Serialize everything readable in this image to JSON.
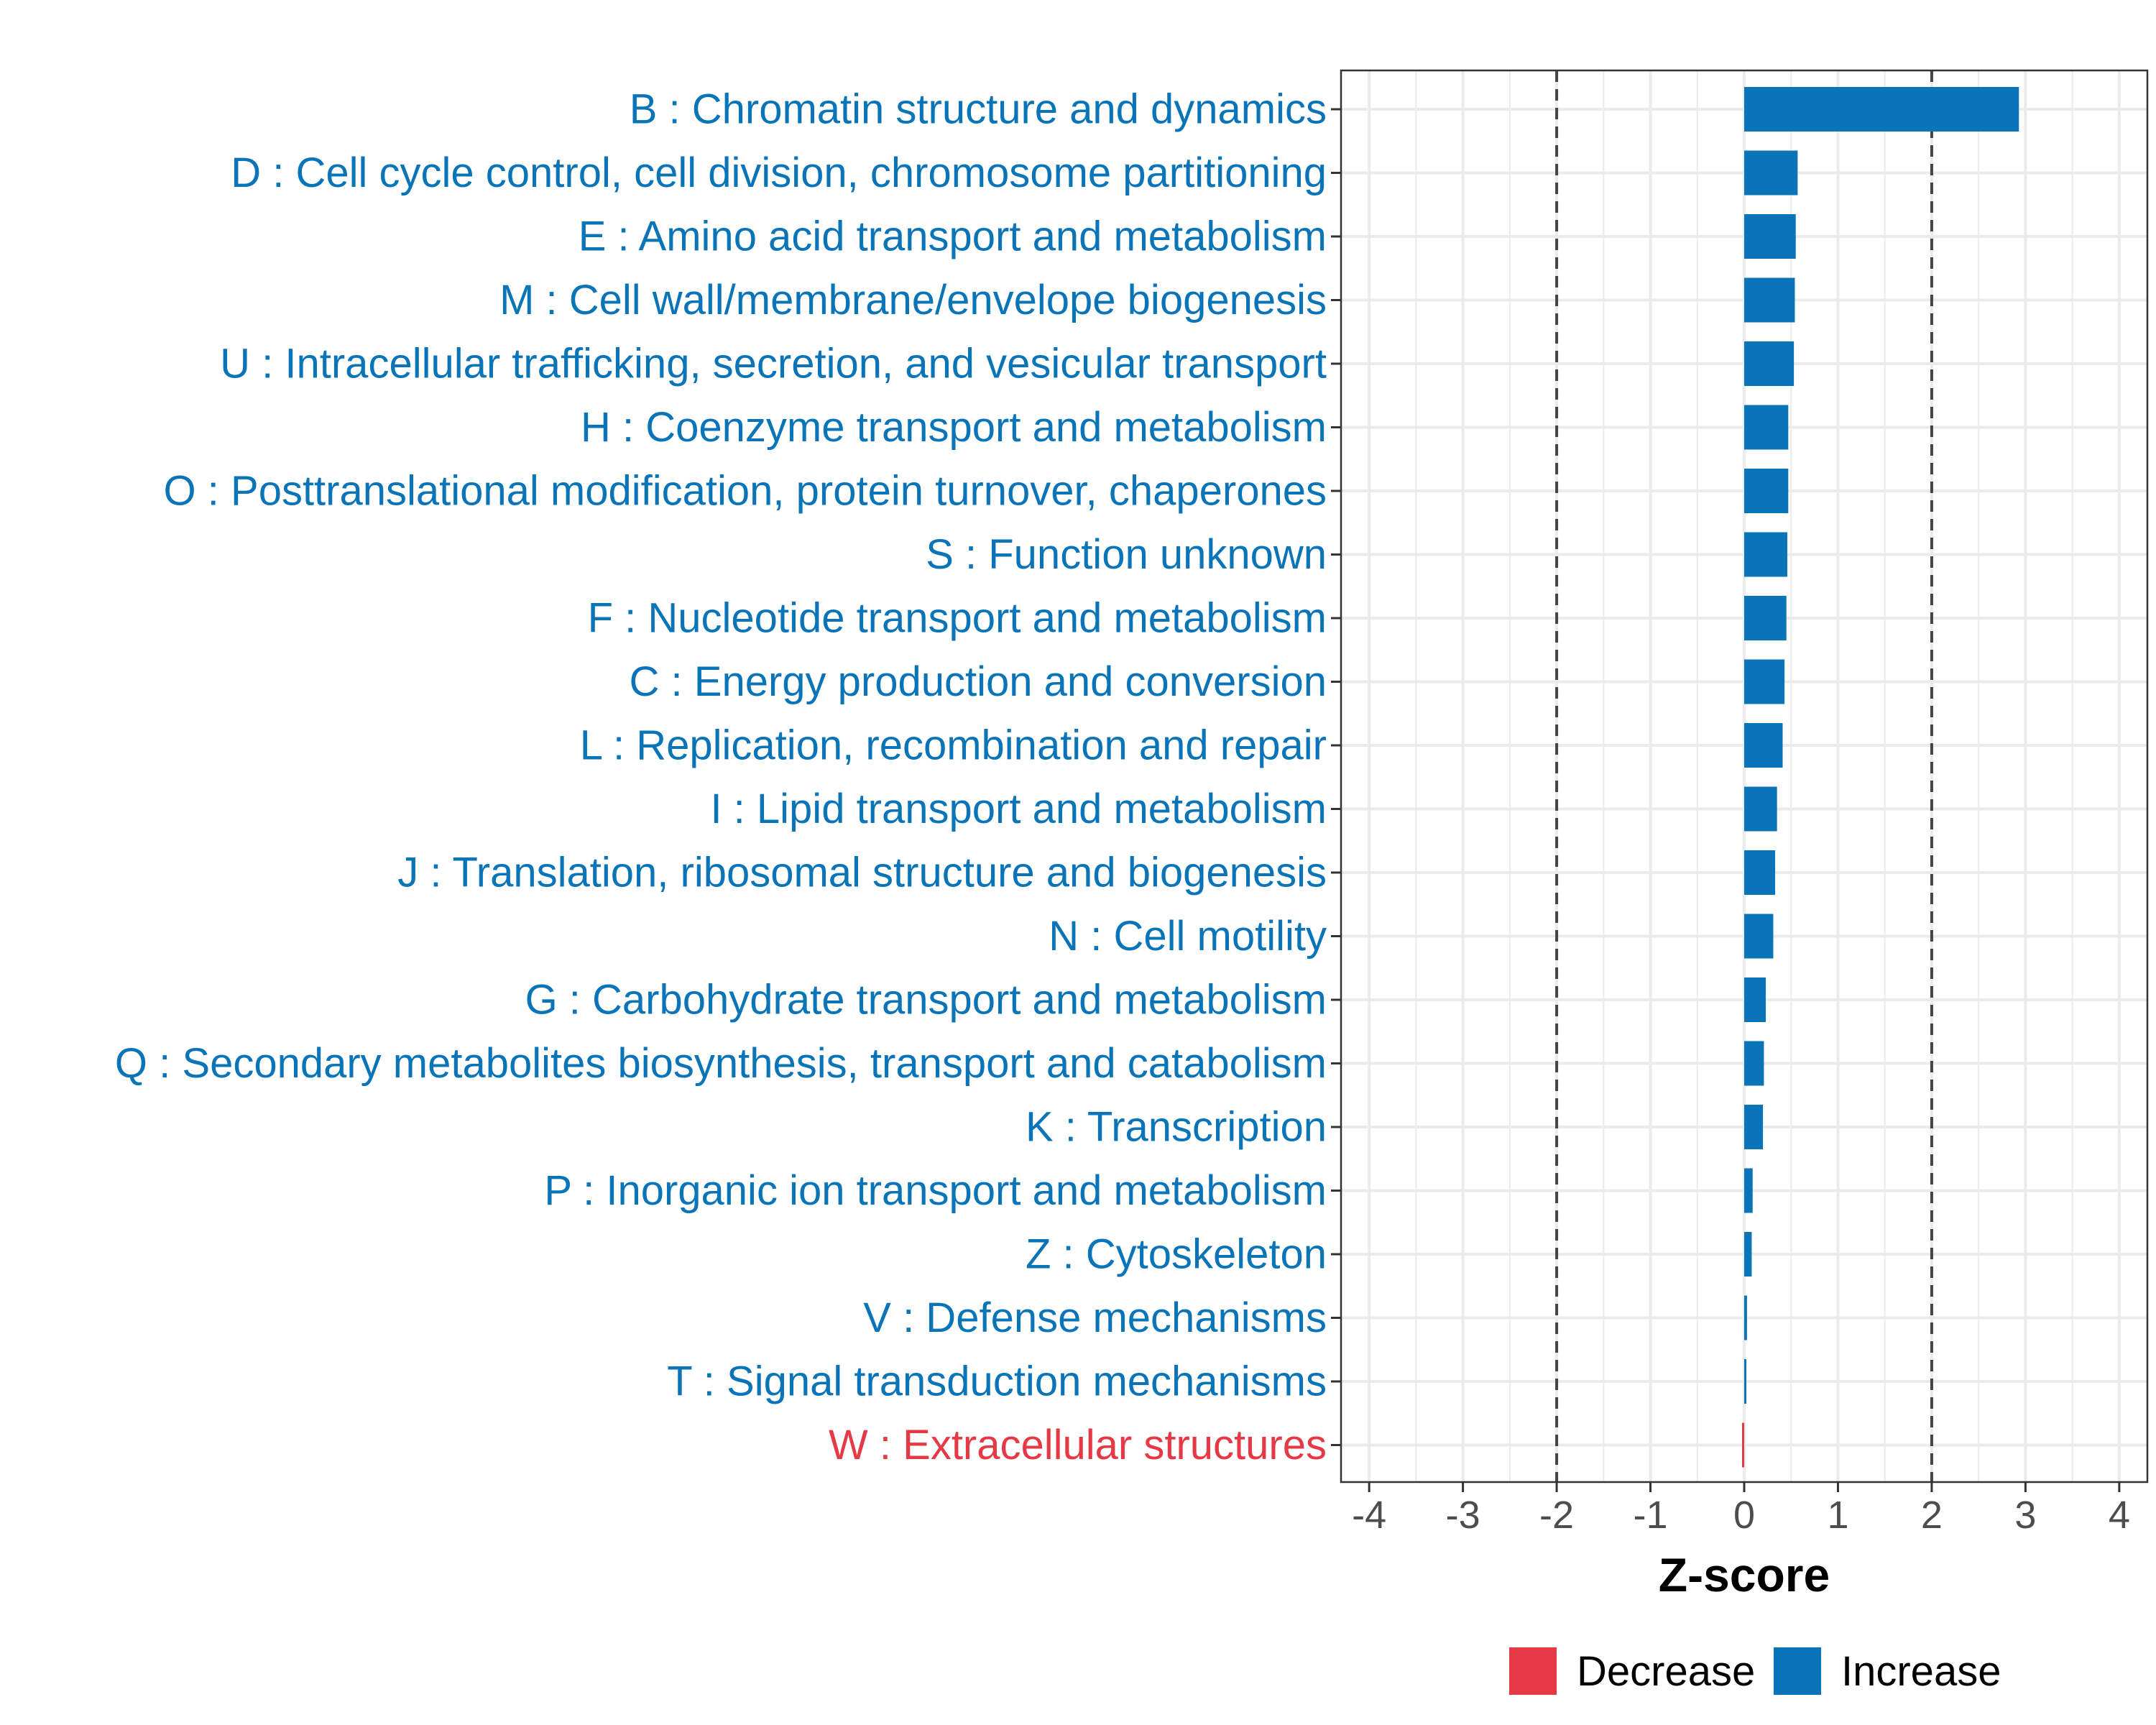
{
  "chart_data": {
    "type": "bar",
    "orientation": "horizontal",
    "title": "",
    "xlabel": "Z-score",
    "ylabel": "",
    "xlim": [
      -4.3,
      4.3
    ],
    "xticks": [
      -4,
      -3,
      -2,
      -1,
      0,
      1,
      2,
      3,
      4
    ],
    "reference_lines": [
      -2,
      2
    ],
    "grid": true,
    "legend_position": "bottom",
    "colors": {
      "Decrease": "#e63946",
      "Increase": "#0a74b8"
    },
    "legend": [
      {
        "label": "Decrease",
        "color": "#e63946"
      },
      {
        "label": "Increase",
        "color": "#0a74b8"
      }
    ],
    "categories": [
      {
        "label": "B : Chromatin structure and dynamics",
        "value": 2.93,
        "group": "Increase"
      },
      {
        "label": "D : Cell cycle control, cell division, chromosome partitioning",
        "value": 0.57,
        "group": "Increase"
      },
      {
        "label": "E : Amino acid transport and metabolism",
        "value": 0.55,
        "group": "Increase"
      },
      {
        "label": "M : Cell wall/membrane/envelope biogenesis",
        "value": 0.54,
        "group": "Increase"
      },
      {
        "label": "U : Intracellular trafficking, secretion, and vesicular transport",
        "value": 0.53,
        "group": "Increase"
      },
      {
        "label": "H : Coenzyme transport and metabolism",
        "value": 0.47,
        "group": "Increase"
      },
      {
        "label": "O : Posttranslational modification, protein turnover, chaperones",
        "value": 0.47,
        "group": "Increase"
      },
      {
        "label": "S : Function unknown",
        "value": 0.46,
        "group": "Increase"
      },
      {
        "label": "F : Nucleotide transport and metabolism",
        "value": 0.45,
        "group": "Increase"
      },
      {
        "label": "C : Energy production and conversion",
        "value": 0.43,
        "group": "Increase"
      },
      {
        "label": "L : Replication, recombination and repair",
        "value": 0.41,
        "group": "Increase"
      },
      {
        "label": "I : Lipid transport and metabolism",
        "value": 0.35,
        "group": "Increase"
      },
      {
        "label": "J : Translation, ribosomal structure and biogenesis",
        "value": 0.33,
        "group": "Increase"
      },
      {
        "label": "N : Cell motility",
        "value": 0.31,
        "group": "Increase"
      },
      {
        "label": "G : Carbohydrate transport and metabolism",
        "value": 0.23,
        "group": "Increase"
      },
      {
        "label": "Q : Secondary metabolites biosynthesis, transport and catabolism",
        "value": 0.21,
        "group": "Increase"
      },
      {
        "label": "K : Transcription",
        "value": 0.2,
        "group": "Increase"
      },
      {
        "label": "P : Inorganic ion transport and metabolism",
        "value": 0.09,
        "group": "Increase"
      },
      {
        "label": "Z : Cytoskeleton",
        "value": 0.08,
        "group": "Increase"
      },
      {
        "label": "V : Defense mechanisms",
        "value": 0.03,
        "group": "Increase"
      },
      {
        "label": "T : Signal transduction mechanisms",
        "value": 0.0,
        "group": "Increase"
      },
      {
        "label": "W : Extracellular structures",
        "value": -0.02,
        "group": "Decrease"
      }
    ]
  }
}
